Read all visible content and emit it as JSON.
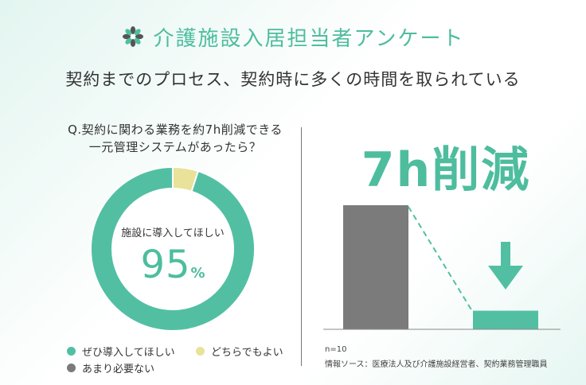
{
  "header": {
    "title": "介護施設入居担当者アンケート",
    "title_icon": "flower-icon",
    "accent_color": "#4dbd9e"
  },
  "subtitle": "契約までのプロセス、契約時に多くの時間を取られている",
  "question": {
    "line1": "Q.契約に関わる業務を約7h削減できる",
    "line2": "一元管理システムがあったら？"
  },
  "donut": {
    "center_label": "施設に導入してほしい",
    "center_value": "95",
    "center_unit": "%"
  },
  "reduction_text": "7h削減",
  "footnote": {
    "n": "n=10",
    "source": "情報ソース：医療法人及び介護施設経営者、契約業務管理職員"
  },
  "chart_data": [
    {
      "type": "pie",
      "style": "donut",
      "categories": [
        "ぜひ導入してほしい",
        "どちらでもよい",
        "あまり必要ない"
      ],
      "values": [
        95,
        5,
        0
      ],
      "colors": [
        "#52bfa3",
        "#e8e29a",
        "#7b7b7b"
      ],
      "legend_position": "bottom"
    },
    {
      "type": "bar",
      "categories": [
        "",
        ""
      ],
      "values": [
        100,
        15
      ],
      "colors": [
        "#7b7b7b",
        "#52bfa3"
      ],
      "annotation": "down-arrow-icon"
    }
  ]
}
